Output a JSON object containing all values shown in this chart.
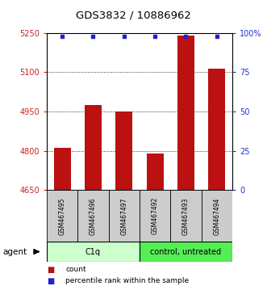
{
  "title": "GDS3832 / 10886962",
  "samples": [
    "GSM467495",
    "GSM467496",
    "GSM467497",
    "GSM467492",
    "GSM467493",
    "GSM467494"
  ],
  "counts": [
    4810,
    4975,
    4950,
    4790,
    5240,
    5115
  ],
  "percentiles": [
    98,
    98,
    98,
    98,
    98,
    98
  ],
  "ylim_left": [
    4650,
    5250
  ],
  "ylim_right": [
    0,
    100
  ],
  "yticks_left": [
    4650,
    4800,
    4950,
    5100,
    5250
  ],
  "yticks_right": [
    0,
    25,
    50,
    75,
    100
  ],
  "bar_color": "#bb1111",
  "dot_color": "#2222cc",
  "left_tick_color": "#cc2222",
  "right_tick_color": "#2233cc",
  "groups": [
    {
      "label": "C1q",
      "start": 0,
      "end": 3,
      "color": "#ccffcc"
    },
    {
      "label": "control, untreated",
      "start": 3,
      "end": 6,
      "color": "#55ee55"
    }
  ],
  "agent_label": "agent",
  "legend_count_label": "count",
  "legend_percentile_label": "percentile rank within the sample",
  "bar_width": 0.55,
  "figsize": [
    3.31,
    3.54
  ],
  "dpi": 100
}
